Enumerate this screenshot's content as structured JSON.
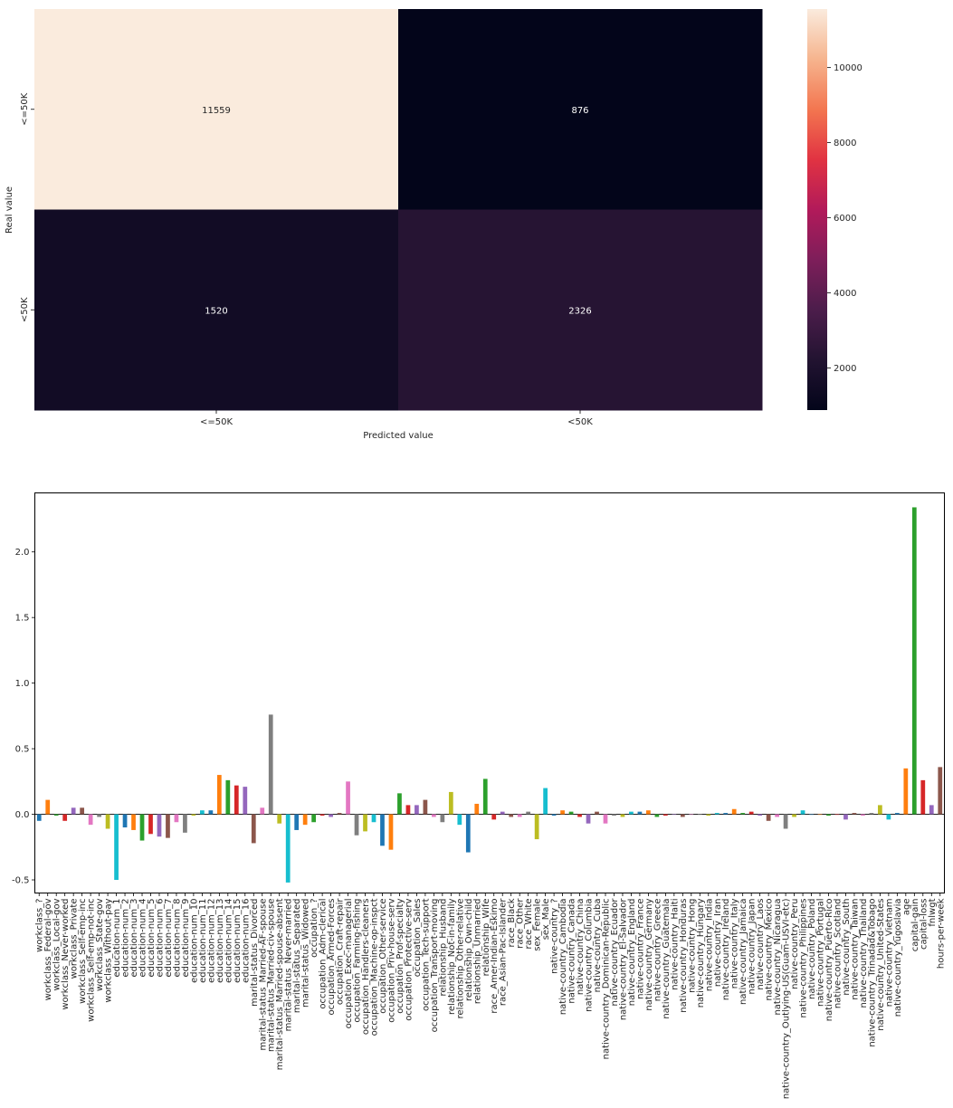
{
  "chart_data": [
    {
      "type": "heatmap",
      "xlabel": "Predicted value",
      "ylabel": "Real value",
      "x_categories": [
        "<=50K",
        "<50K"
      ],
      "y_categories": [
        "<=50K",
        "<50K"
      ],
      "values": [
        [
          11559,
          876
        ],
        [
          1520,
          2326
        ]
      ],
      "colorbar": {
        "ticks": [
          2000,
          4000,
          6000,
          8000,
          10000
        ],
        "min": 876,
        "max": 11559,
        "colormap": "rocket"
      }
    },
    {
      "type": "bar",
      "ylim": [
        -0.6,
        2.45
      ],
      "yticks": [
        -0.5,
        0.0,
        0.5,
        1.0,
        1.5,
        2.0
      ],
      "palette": [
        "#1f77b4",
        "#ff7f0e",
        "#2ca02c",
        "#d62728",
        "#9467bd",
        "#8c564b",
        "#e377c2",
        "#7f7f7f",
        "#bcbd22",
        "#17becf"
      ],
      "categories": [
        "workclass_?",
        "workclass_Federal-gov",
        "workclass_Local-gov",
        "workclass_Never-worked",
        "workclass_Private",
        "workclass_Self-emp-inc",
        "workclass_Self-emp-not-inc",
        "workclass_State-gov",
        "workclass_Without-pay",
        "education-num_1",
        "education-num_2",
        "education-num_3",
        "education-num_4",
        "education-num_5",
        "education-num_6",
        "education-num_7",
        "education-num_8",
        "education-num_9",
        "education-num_10",
        "education-num_11",
        "education-num_12",
        "education-num_13",
        "education-num_14",
        "education-num_15",
        "education-num_16",
        "marital-status_Divorced",
        "marital-status_Married-AF-spouse",
        "marital-status_Married-civ-spouse",
        "marital-status_Married-spouse-absent",
        "marital-status_Never-married",
        "marital-status_Separated",
        "marital-status_Widowed",
        "occupation_?",
        "occupation_Adm-clerical",
        "occupation_Armed-Forces",
        "occupation_Craft-repair",
        "occupation_Exec-managerial",
        "occupation_Farming-fishing",
        "occupation_Handlers-cleaners",
        "occupation_Machine-op-inspct",
        "occupation_Other-service",
        "occupation_Priv-house-serv",
        "occupation_Prof-specialty",
        "occupation_Protective-serv",
        "occupation_Sales",
        "occupation_Tech-support",
        "occupation_Transport-moving",
        "relationship_Husband",
        "relationship_Not-in-family",
        "relationship_Other-relative",
        "relationship_Own-child",
        "relationship_Unmarried",
        "relationship_Wife",
        "race_Amer-Indian-Eskimo",
        "race_Asian-Pac-Islander",
        "race_Black",
        "race_Other",
        "race_White",
        "sex_Female",
        "sex_Male",
        "native-country_?",
        "native-country_Cambodia",
        "native-country_Canada",
        "native-country_China",
        "native-country_Columbia",
        "native-country_Cuba",
        "native-country_Dominican-Republic",
        "native-country_Ecuador",
        "native-country_El-Salvador",
        "native-country_England",
        "native-country_France",
        "native-country_Germany",
        "native-country_Greece",
        "native-country_Guatemala",
        "native-country_Haiti",
        "native-country_Honduras",
        "native-country_Hong",
        "native-country_Hungary",
        "native-country_India",
        "native-country_Iran",
        "native-country_Ireland",
        "native-country_Italy",
        "native-country_Jamaica",
        "native-country_Japan",
        "native-country_Laos",
        "native-country_Mexico",
        "native-country_Nicaragua",
        "native-country_Outlying-US(Guam-USVI-etc)",
        "native-country_Peru",
        "native-country_Philippines",
        "native-country_Poland",
        "native-country_Portugal",
        "native-country_Puerto-Rico",
        "native-country_Scotland",
        "native-country_South",
        "native-country_Taiwan",
        "native-country_Thailand",
        "native-country_Trinadad&Tobago",
        "native-country_United-States",
        "native-country_Vietnam",
        "native-country_Yugoslavia",
        "age",
        "capital-gain",
        "capital-loss",
        "fnlwgt",
        "hours-per-week"
      ],
      "values": [
        -0.05,
        0.11,
        -0.01,
        -0.05,
        0.05,
        0.05,
        -0.08,
        -0.02,
        -0.11,
        -0.5,
        -0.1,
        -0.12,
        -0.2,
        -0.15,
        -0.17,
        -0.18,
        -0.06,
        -0.14,
        -0.01,
        0.03,
        0.03,
        0.3,
        0.26,
        0.22,
        0.21,
        -0.22,
        0.05,
        0.76,
        -0.07,
        -0.52,
        -0.12,
        -0.08,
        -0.06,
        -0.01,
        -0.02,
        0.01,
        0.25,
        -0.16,
        -0.13,
        -0.06,
        -0.24,
        -0.27,
        0.16,
        0.07,
        0.07,
        0.11,
        -0.02,
        -0.06,
        0.17,
        -0.08,
        -0.29,
        0.08,
        0.27,
        -0.04,
        0.02,
        -0.02,
        -0.02,
        0.02,
        -0.19,
        0.2,
        -0.01,
        0.03,
        0.02,
        -0.02,
        -0.07,
        0.02,
        -0.07,
        -0.01,
        -0.02,
        0.02,
        0.02,
        0.03,
        -0.02,
        -0.01,
        0.0,
        -0.02,
        0.0,
        0.0,
        -0.01,
        0.01,
        0.01,
        0.04,
        0.01,
        0.02,
        -0.01,
        -0.05,
        -0.02,
        -0.11,
        -0.02,
        0.03,
        0.0,
        0.0,
        -0.01,
        0.0,
        -0.04,
        0.01,
        -0.01,
        0.01,
        0.07,
        -0.04,
        0.01,
        0.35,
        2.34,
        0.26,
        0.07,
        0.36
      ]
    }
  ]
}
